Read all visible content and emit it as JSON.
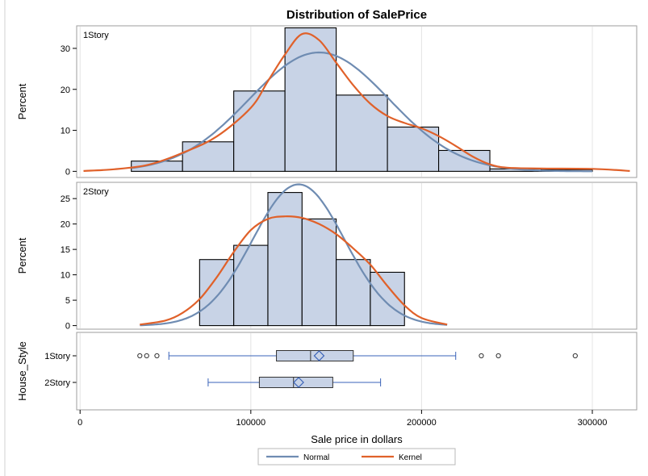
{
  "chart_data": {
    "type": "histogram-panel",
    "title": "Distribution of SalePrice",
    "xlabel": "Sale price in dollars",
    "xlim": [
      -2000,
      326000
    ],
    "xticks": [
      0,
      100000,
      200000,
      300000
    ],
    "xtick_labels": [
      "0",
      "100000",
      "200000",
      "300000"
    ],
    "colors": {
      "bar_fill": "#c8d3e6",
      "bar_stroke": "#000000",
      "normal": "#6f8cb2",
      "kernel": "#e0612a",
      "box_fill": "#c8d3e6",
      "box_line": "#3a63b8",
      "grid": "#e4e4e4",
      "frame": "#9e9e9e"
    },
    "panels": [
      {
        "label": "1Story",
        "ylabel": "Percent",
        "ylim": [
          -1.5,
          35.5
        ],
        "yticks": [
          0,
          10,
          20,
          30
        ],
        "bin_width": 30000,
        "bins": [
          {
            "start": 30000,
            "value": 2.5
          },
          {
            "start": 60000,
            "value": 7.2
          },
          {
            "start": 90000,
            "value": 19.6
          },
          {
            "start": 120000,
            "value": 35.0
          },
          {
            "start": 150000,
            "value": 18.6
          },
          {
            "start": 180000,
            "value": 10.8
          },
          {
            "start": 210000,
            "value": 5.1
          },
          {
            "start": 240000,
            "value": 0.6
          },
          {
            "start": 270000,
            "value": 0.4
          }
        ],
        "normal": {
          "mean": 140000,
          "sd": 41000,
          "peak": 29.0,
          "range": [
            30000,
            300000
          ]
        },
        "kernel": {
          "x": [
            2000,
            20000,
            40000,
            60000,
            80000,
            100000,
            110000,
            120000,
            130000,
            140000,
            150000,
            160000,
            170000,
            180000,
            190000,
            200000,
            210000,
            220000,
            230000,
            240000,
            250000,
            270000,
            300000,
            322000
          ],
          "y": [
            0.1,
            0.5,
            1.6,
            4.5,
            8.5,
            15.5,
            22.0,
            28.5,
            33.5,
            32.0,
            26.5,
            21.0,
            16.5,
            13.5,
            11.8,
            10.5,
            8.6,
            6.2,
            3.6,
            1.7,
            0.9,
            0.7,
            0.6,
            0.1
          ]
        }
      },
      {
        "label": "2Story",
        "ylabel": "Percent",
        "ylim": [
          -0.7,
          28.2
        ],
        "yticks": [
          0,
          5,
          10,
          15,
          20,
          25
        ],
        "bin_width": 20000,
        "bins": [
          {
            "start": 70000,
            "value": 13.0
          },
          {
            "start": 90000,
            "value": 15.8
          },
          {
            "start": 110000,
            "value": 26.2
          },
          {
            "start": 130000,
            "value": 21.0
          },
          {
            "start": 150000,
            "value": 13.0
          },
          {
            "start": 170000,
            "value": 10.5
          }
        ],
        "normal": {
          "mean": 128000,
          "sd": 27000,
          "peak": 27.8,
          "range": [
            35000,
            215000
          ]
        },
        "kernel": {
          "x": [
            35000,
            50000,
            60000,
            70000,
            80000,
            90000,
            100000,
            110000,
            120000,
            130000,
            140000,
            150000,
            160000,
            170000,
            180000,
            190000,
            200000,
            215000
          ],
          "y": [
            0.2,
            1.0,
            2.5,
            5.2,
            9.5,
            14.5,
            18.8,
            21.0,
            21.5,
            21.2,
            20.0,
            18.0,
            15.2,
            12.0,
            7.8,
            4.0,
            1.5,
            0.2
          ]
        }
      }
    ],
    "box_panel": {
      "ylabel": "House_Style",
      "categories": [
        {
          "label": "1Story",
          "whisker_low": 52000,
          "q1": 115000,
          "median": 135000,
          "mean": 140000,
          "q3": 160000,
          "whisker_high": 220000,
          "outliers": [
            35000,
            39000,
            45000,
            235000,
            245000,
            290000
          ]
        },
        {
          "label": "2Story",
          "whisker_low": 75000,
          "q1": 105000,
          "median": 125000,
          "mean": 128000,
          "q3": 148000,
          "whisker_high": 176000,
          "outliers": []
        }
      ]
    },
    "legend": {
      "placement": "bottom-center",
      "items": [
        {
          "name": "Normal",
          "color": "#6f8cb2"
        },
        {
          "name": "Kernel",
          "color": "#e0612a"
        }
      ]
    }
  }
}
